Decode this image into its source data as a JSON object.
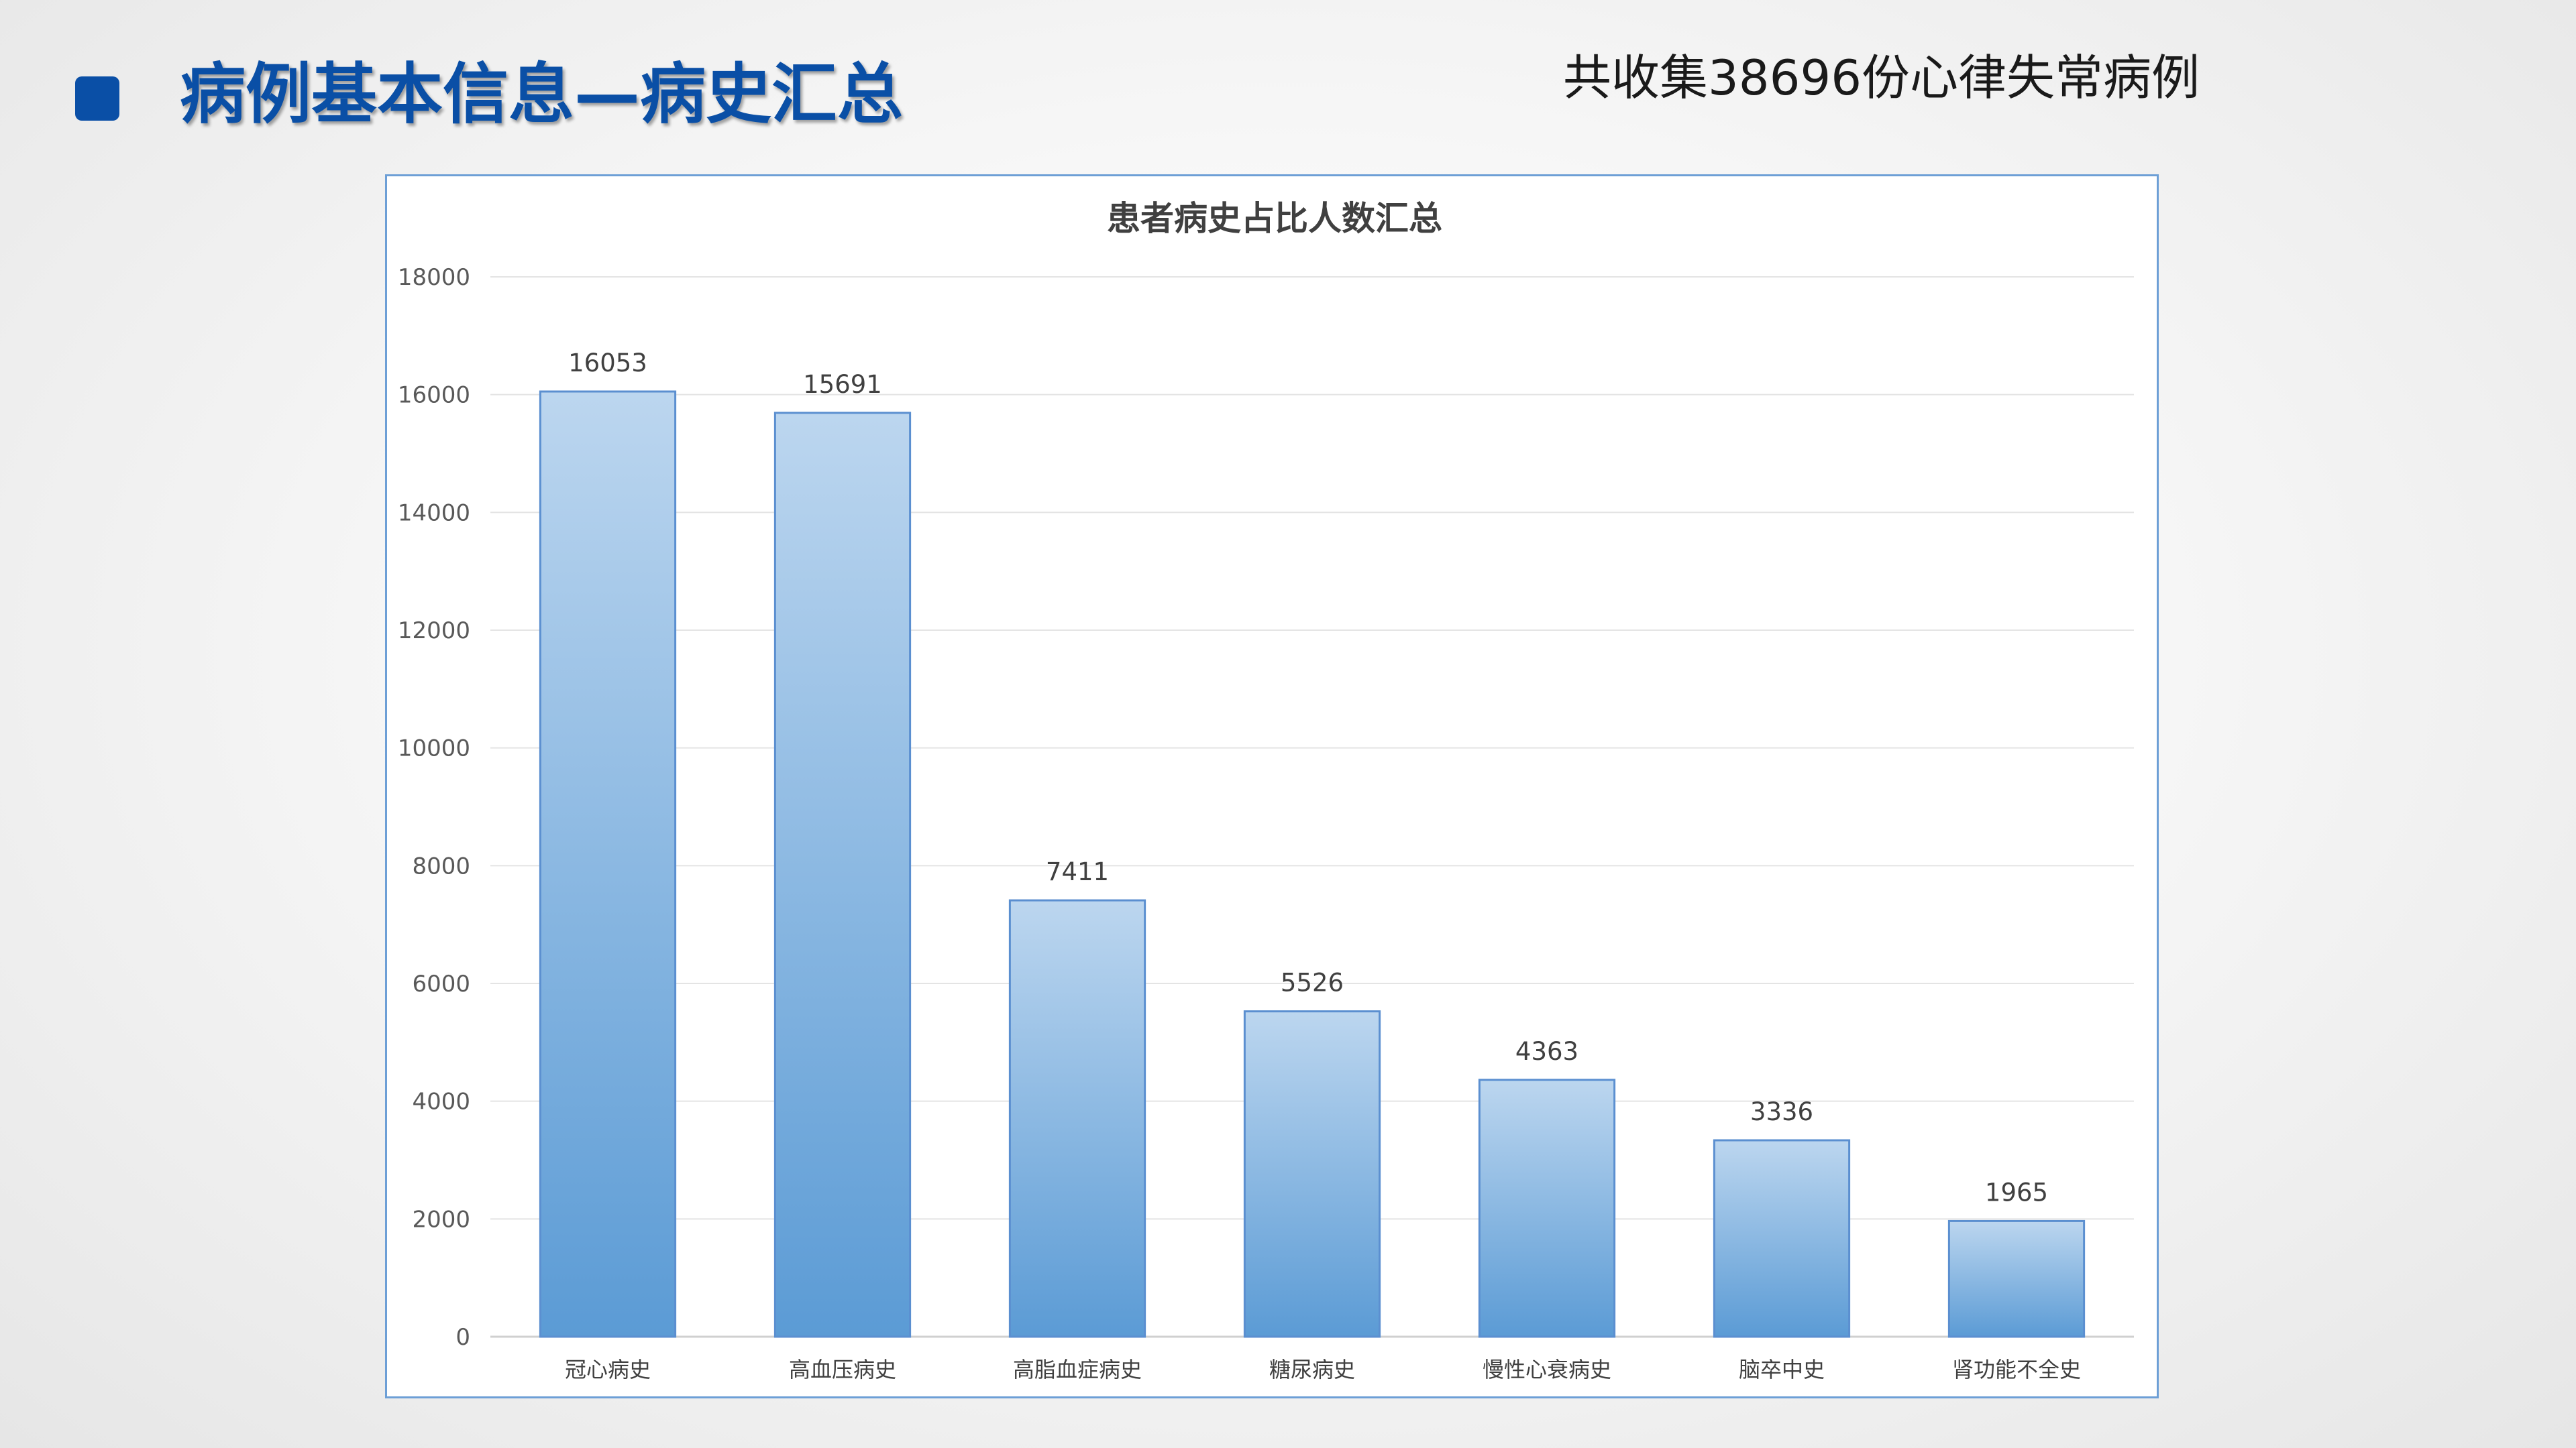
{
  "slide": {
    "title": "病例基本信息—病史汇总",
    "subtitle": "共收集38696份心律失常病例",
    "accent_color": "#0a4fa6"
  },
  "chart_data": {
    "type": "bar",
    "title": "患者病史占比人数汇总",
    "xlabel": "",
    "ylabel": "",
    "categories": [
      "冠心病史",
      "高血压病史",
      "高脂血症病史",
      "糖尿病史",
      "慢性心衰病史",
      "脑卒中史",
      "肾功能不全史"
    ],
    "values": [
      16053,
      15691,
      7411,
      5526,
      4363,
      3336,
      1965
    ],
    "data_labels": [
      "16053",
      "15691",
      "7411",
      "5526",
      "4363",
      "3336",
      "1965"
    ],
    "yticks": [
      "0",
      "2000",
      "4000",
      "6000",
      "8000",
      "10000",
      "12000",
      "14000",
      "16000",
      "18000"
    ],
    "ylim": [
      0,
      18000
    ],
    "grid": true,
    "legend": "none",
    "bar_color_top": "#bcd6ef",
    "bar_color_bottom": "#5b9bd5"
  }
}
